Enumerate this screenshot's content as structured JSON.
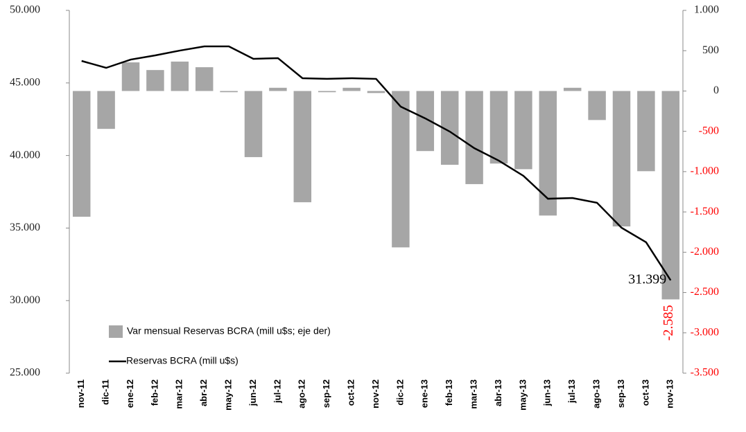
{
  "chart_data": {
    "type": "bar",
    "categories": [
      "nov-11",
      "dic-11",
      "ene-12",
      "feb-12",
      "mar-12",
      "abr-12",
      "may-12",
      "jun-12",
      "jul-12",
      "ago-12",
      "sep-12",
      "oct-12",
      "nov-12",
      "dic-12",
      "ene-13",
      "feb-13",
      "mar-13",
      "abr-13",
      "may-13",
      "jun-13",
      "jul-13",
      "ago-13",
      "sep-13",
      "oct-13",
      "nov-13"
    ],
    "series": [
      {
        "name": "Var mensual Reservas BCRA (mill u$s; eje der)",
        "type": "bar",
        "axis": "y2",
        "color": "#a6a6a6",
        "values": [
          -1560,
          -470,
          355,
          260,
          365,
          295,
          -15,
          -820,
          40,
          -1380,
          -15,
          40,
          -25,
          -1940,
          -745,
          -915,
          -1155,
          -900,
          -970,
          -1545,
          40,
          -360,
          -1680,
          -995,
          -2585
        ],
        "value_labels": [
          null,
          null,
          null,
          null,
          null,
          null,
          null,
          null,
          null,
          null,
          null,
          null,
          null,
          null,
          null,
          null,
          null,
          null,
          null,
          null,
          null,
          null,
          null,
          null,
          "-2.585"
        ],
        "label_color": "#ff0000"
      },
      {
        "name": "Reservas BCRA (mill u$s)",
        "type": "line",
        "axis": "y",
        "color": "#000000",
        "values": [
          46517,
          46040,
          46610,
          46900,
          47230,
          47520,
          47520,
          46660,
          46710,
          45325,
          45280,
          45325,
          45280,
          43370,
          42560,
          41650,
          40505,
          39645,
          38600,
          37020,
          37070,
          36740,
          35020,
          34020,
          31399
        ],
        "value_labels": [
          null,
          null,
          null,
          null,
          null,
          null,
          null,
          null,
          null,
          null,
          null,
          null,
          null,
          null,
          null,
          null,
          null,
          null,
          null,
          null,
          null,
          null,
          null,
          null,
          "31.399"
        ]
      }
    ],
    "ylim": [
      25000,
      50000
    ],
    "yticks": [
      {
        "value": 25000,
        "label": "25.000"
      },
      {
        "value": 30000,
        "label": "30.000"
      },
      {
        "value": 35000,
        "label": "35.000"
      },
      {
        "value": 40000,
        "label": "40.000"
      },
      {
        "value": 45000,
        "label": "45.000"
      },
      {
        "value": 50000,
        "label": "50.000"
      }
    ],
    "y2lim": [
      -3500,
      1000
    ],
    "y2ticks": [
      {
        "value": -3500,
        "label": "-3.500"
      },
      {
        "value": -3000,
        "label": "-3.000"
      },
      {
        "value": -2500,
        "label": "-2.500"
      },
      {
        "value": -2000,
        "label": "-2.000"
      },
      {
        "value": -1500,
        "label": "-1.500"
      },
      {
        "value": -1000,
        "label": "-1.000"
      },
      -500,
      0,
      500,
      {
        "value": 1000,
        "label": "1.000"
      }
    ],
    "negative_tick_color": "#ff0000",
    "grid": false,
    "legend": "lower left"
  }
}
